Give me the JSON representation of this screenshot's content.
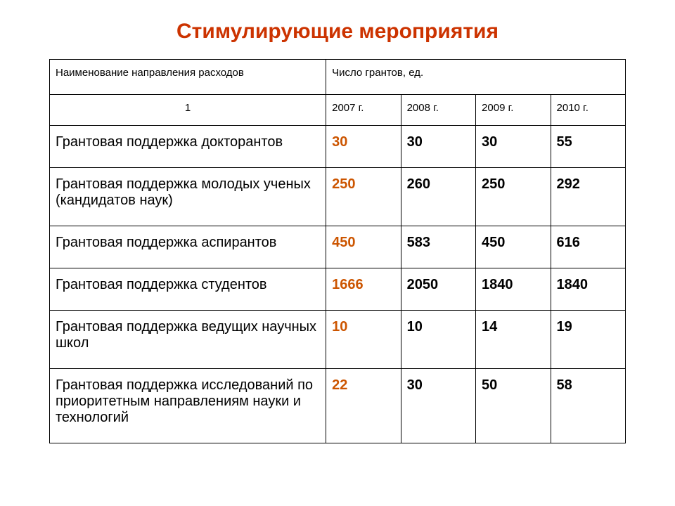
{
  "title": "Стимулирующие мероприятия",
  "title_color": "#cc3300",
  "table": {
    "header": {
      "name_label": "Наименование направления расходов",
      "count_label": "Число грантов, ед.",
      "sub1": "1",
      "years": [
        "2007 г.",
        "2008 г.",
        "2009 г.",
        "2010 г."
      ]
    },
    "highlight_column_index": 0,
    "highlight_color": "#cc5500",
    "text_color": "#000000",
    "border_color": "#000000",
    "rows": [
      {
        "name": "Грантовая поддержка докторантов",
        "values": [
          "30",
          "30",
          "30",
          "55"
        ]
      },
      {
        "name": "Грантовая поддержка молодых ученых (кандидатов наук)",
        "values": [
          "250",
          "260",
          "250",
          "292"
        ]
      },
      {
        "name": "Грантовая поддержка аспирантов",
        "values": [
          "450",
          "583",
          "450",
          "616"
        ]
      },
      {
        "name": "Грантовая поддержка студентов",
        "values": [
          "1666",
          "2050",
          "1840",
          "1840"
        ]
      },
      {
        "name": "Грантовая поддержка ведущих научных школ",
        "values": [
          "10",
          "10",
          "14",
          "19"
        ]
      },
      {
        "name": "Грантовая поддержка исследований по приоритетным направлениям науки и технологий",
        "values": [
          "22",
          "30",
          "50",
          "58"
        ]
      }
    ]
  }
}
